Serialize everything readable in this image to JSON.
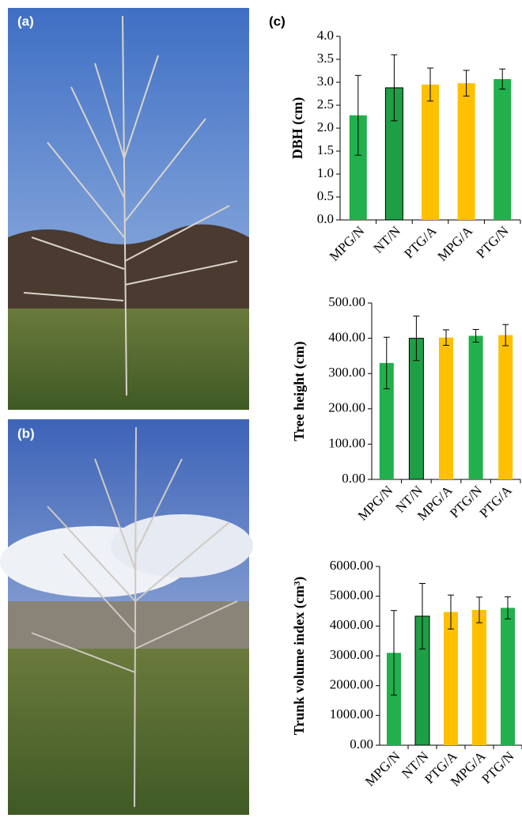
{
  "panels": [
    {
      "label": "(a)"
    },
    {
      "label": "(b)"
    },
    {
      "label": "(c)"
    }
  ],
  "chart_data": [
    {
      "type": "bar",
      "y_label": "DBH (cm)",
      "categories": [
        "MPG/N",
        "NT/N",
        "PTG/A",
        "MPG/A",
        "PTG/N"
      ],
      "values": [
        2.28,
        2.88,
        2.95,
        2.98,
        3.07
      ],
      "errors": [
        0.87,
        0.72,
        0.36,
        0.28,
        0.22
      ],
      "colors": [
        "#21b04b",
        "#1e9e45",
        "#ffc000",
        "#ffc000",
        "#21b04b"
      ],
      "ylim": [
        0,
        4
      ],
      "yticks": [
        {
          "value": 0,
          "label": "0.0"
        },
        {
          "value": 0.5,
          "label": "0.5"
        },
        {
          "value": 1,
          "label": "1.0"
        },
        {
          "value": 1.5,
          "label": "1.5"
        },
        {
          "value": 2,
          "label": "2.0"
        },
        {
          "value": 2.5,
          "label": "2.5"
        },
        {
          "value": 3,
          "label": "3.0"
        },
        {
          "value": 3.5,
          "label": "3.5"
        },
        {
          "value": 4,
          "label": "4.0"
        }
      ]
    },
    {
      "type": "bar",
      "y_label": "Tree height (cm)",
      "categories": [
        "MPG/N",
        "NT/N",
        "MPG/A",
        "PTG/N",
        "PTG/A"
      ],
      "values": [
        330,
        400,
        402,
        407,
        409
      ],
      "errors": [
        73,
        63,
        22,
        18,
        30
      ],
      "colors": [
        "#21b04b",
        "#1e9e45",
        "#ffc000",
        "#21b04b",
        "#ffc000"
      ],
      "ylim": [
        0,
        500
      ],
      "yticks": [
        {
          "value": 0,
          "label": "0.00"
        },
        {
          "value": 100,
          "label": "100.00"
        },
        {
          "value": 200,
          "label": "200.00"
        },
        {
          "value": 300,
          "label": "300.00"
        },
        {
          "value": 400,
          "label": "400.00"
        },
        {
          "value": 500,
          "label": "500.00"
        }
      ]
    },
    {
      "type": "bar",
      "y_label": "Trunk volume index (cm³)",
      "categories": [
        "MPG/N",
        "NT/N",
        "PTG/A",
        "MPG/A",
        "PTG/N"
      ],
      "values": [
        3100,
        4330,
        4470,
        4540,
        4610
      ],
      "errors": [
        1420,
        1100,
        570,
        430,
        370
      ],
      "colors": [
        "#21b04b",
        "#1e9e45",
        "#ffc000",
        "#ffc000",
        "#21b04b"
      ],
      "ylim": [
        0,
        6000
      ],
      "yticks": [
        {
          "value": 0,
          "label": "0.00"
        },
        {
          "value": 1000,
          "label": "1000.00"
        },
        {
          "value": 2000,
          "label": "2000.00"
        },
        {
          "value": 3000,
          "label": "3000.00"
        },
        {
          "value": 4000,
          "label": "4000.00"
        },
        {
          "value": 5000,
          "label": "5000.00"
        },
        {
          "value": 6000,
          "label": "6000.00"
        }
      ]
    }
  ]
}
